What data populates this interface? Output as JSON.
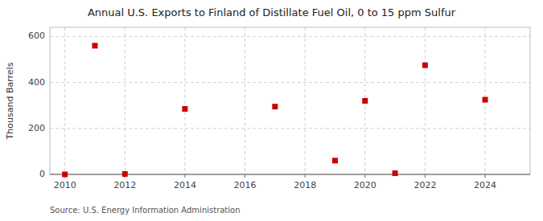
{
  "chart_data": {
    "type": "scatter",
    "title": "Annual U.S. Exports to Finland of Distillate Fuel Oil, 0 to 15 ppm Sulfur",
    "ylabel": "Thousand Barrels",
    "source": "Source: U.S. Energy Information Administration",
    "x": [
      2010,
      2011,
      2012,
      2014,
      2017,
      2019,
      2020,
      2021,
      2022,
      2024
    ],
    "values": [
      0,
      560,
      2,
      285,
      295,
      60,
      320,
      5,
      475,
      325
    ],
    "xlim": [
      2009.5,
      2025.5
    ],
    "ylim": [
      0,
      640
    ],
    "xticks": [
      2010,
      2012,
      2014,
      2016,
      2018,
      2020,
      2022,
      2024
    ],
    "yticks": [
      0,
      200,
      400,
      600
    ],
    "color": "#cc0000",
    "marker": "square",
    "grid": true
  }
}
